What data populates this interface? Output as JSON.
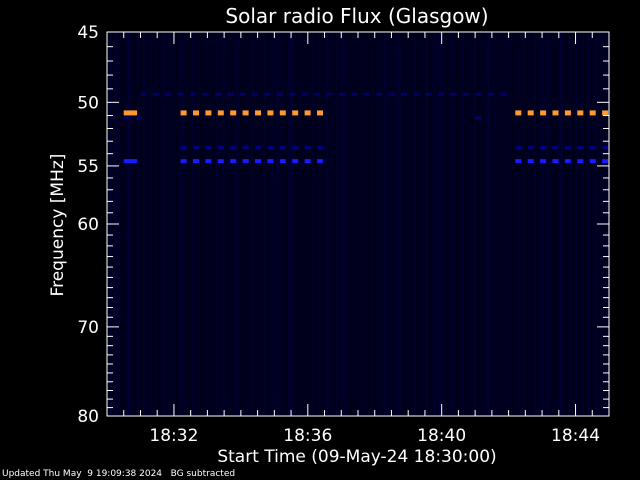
{
  "chart_data": {
    "type": "heatmap",
    "title": "Solar radio Flux (Glasgow)",
    "xlabel": "Start Time (09-May-24 18:30:00)",
    "ylabel": "Frequency [MHz]",
    "x_unit": "minutes after 18:30:00",
    "xlim": [
      0,
      15
    ],
    "ylim": [
      45,
      80
    ],
    "y_scale": "log",
    "x_ticks": [
      {
        "value": 2,
        "label": "18:32"
      },
      {
        "value": 6,
        "label": "18:36"
      },
      {
        "value": 10,
        "label": "18:40"
      },
      {
        "value": 14,
        "label": "18:44"
      }
    ],
    "y_ticks": [
      {
        "value": 45,
        "label": "45"
      },
      {
        "value": 50,
        "label": "50"
      },
      {
        "value": 55,
        "label": "55"
      },
      {
        "value": 60,
        "label": "60"
      },
      {
        "value": 70,
        "label": "70"
      },
      {
        "value": 80,
        "label": "80"
      }
    ],
    "background_color": "#00001a",
    "bands": [
      {
        "freq": 50.8,
        "intensity": "high",
        "color": "#ff9933",
        "segments": [
          [
            0.5,
            0.9
          ],
          [
            2.2,
            6.5
          ],
          [
            12.2,
            15
          ]
        ]
      },
      {
        "freq": 54.6,
        "intensity": "medium",
        "color": "#1a1aff",
        "segments": [
          [
            0.5,
            0.9
          ],
          [
            2.2,
            6.5
          ],
          [
            12.2,
            15
          ]
        ]
      },
      {
        "freq": 53.5,
        "intensity": "low",
        "color": "#000080",
        "segments": [
          [
            2.2,
            6.5
          ],
          [
            12.2,
            15
          ]
        ]
      },
      {
        "freq": 49.4,
        "intensity": "low",
        "color": "#00006a",
        "segments": [
          [
            1.0,
            12.2
          ]
        ]
      },
      {
        "freq": 51.2,
        "intensity": "low",
        "color": "#000070",
        "segments": [
          [
            0.5,
            1.3
          ],
          [
            11.0,
            11.2
          ]
        ]
      }
    ]
  },
  "footer": {
    "updated": "Updated Thu May  9 19:09:38 2024",
    "note": "BG subtracted"
  }
}
